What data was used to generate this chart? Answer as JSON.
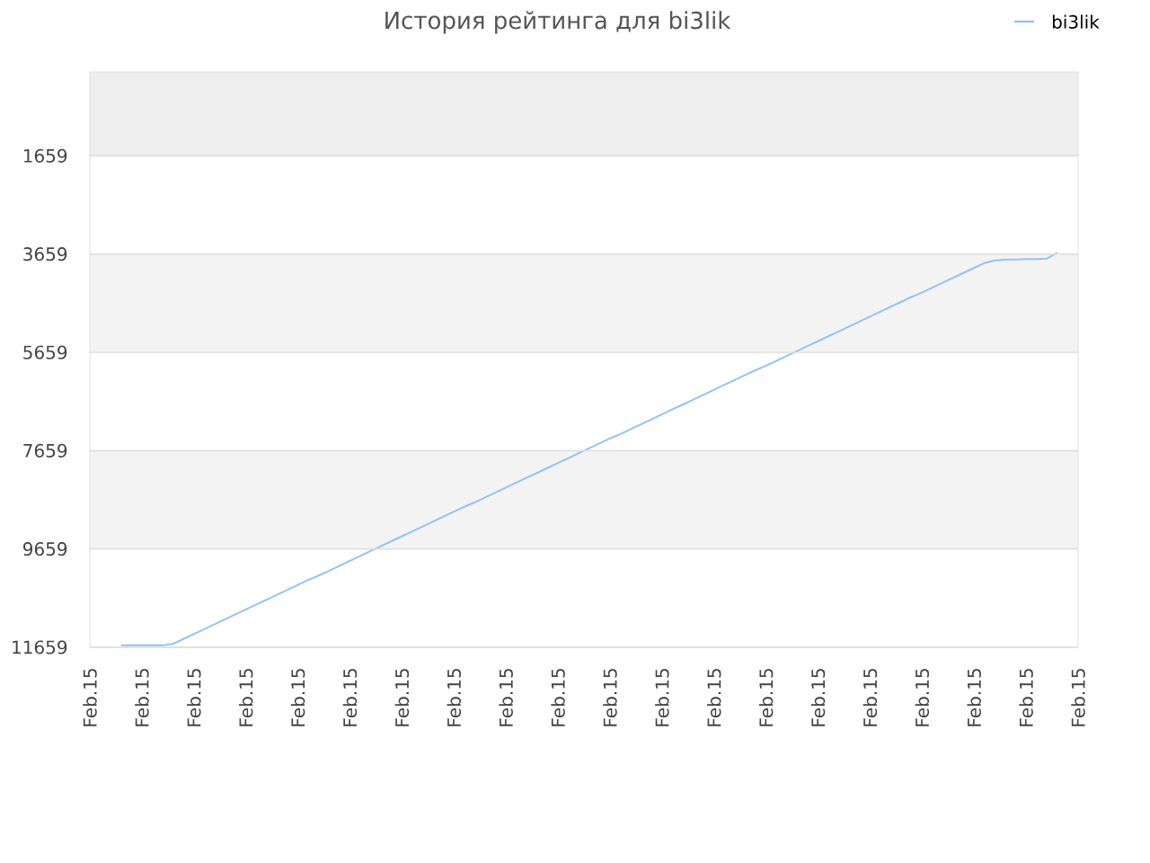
{
  "chart_data": {
    "type": "line",
    "title": "История рейтинга для bi3lik",
    "categories": [
      "Feb.15",
      null,
      null,
      null,
      null,
      "Feb.15",
      null,
      null,
      null,
      null,
      "Feb.15",
      null,
      null,
      null,
      null,
      "Feb.15",
      null,
      null,
      null,
      null,
      "Feb.15",
      null,
      null,
      null,
      null,
      "Feb.15",
      null,
      null,
      null,
      null,
      "Feb.15",
      null,
      null,
      null,
      null,
      "Feb.15",
      null,
      null,
      null,
      null,
      "Feb.15",
      null,
      null,
      null,
      null,
      "Feb.15",
      null,
      null,
      null,
      null,
      "Feb.15",
      null,
      null,
      null,
      null,
      "Feb.15",
      null,
      null,
      null,
      null,
      "Feb.15",
      null,
      null,
      null,
      null,
      "Feb.15",
      null,
      null,
      null,
      null,
      "Feb.15",
      null,
      null,
      null,
      null,
      "Feb.15",
      null,
      null,
      null,
      null,
      "Feb.15",
      null,
      null,
      null,
      null,
      "Feb.15",
      null,
      null,
      null,
      null,
      "Feb.15",
      null,
      null,
      null,
      null,
      "Feb.15"
    ],
    "series": [
      {
        "name": "bi3lik",
        "color": "#95c2f2",
        "values": [
          null,
          null,
          null,
          11620,
          11620,
          11620,
          11620,
          11620,
          11590,
          11490,
          11390,
          11290,
          11190,
          11090,
          10990,
          10890,
          10790,
          10690,
          10590,
          10490,
          10390,
          10290,
          10200,
          10100,
          10000,
          9900,
          9800,
          9700,
          9600,
          9500,
          9400,
          9300,
          9200,
          9100,
          9000,
          8900,
          8800,
          8710,
          8610,
          8510,
          8410,
          8310,
          8210,
          8110,
          8010,
          7910,
          7810,
          7710,
          7610,
          7510,
          7410,
          7320,
          7220,
          7120,
          7020,
          6920,
          6820,
          6720,
          6620,
          6520,
          6420,
          6320,
          6220,
          6120,
          6020,
          5930,
          5830,
          5730,
          5630,
          5530,
          5430,
          5330,
          5230,
          5130,
          5030,
          4930,
          4830,
          4730,
          4630,
          4530,
          4440,
          4340,
          4240,
          4140,
          4040,
          3940,
          3840,
          3790,
          3770,
          3770,
          3760,
          3760,
          3750,
          3630,
          null,
          null
        ]
      }
    ],
    "ylim": [
      11659,
      -48
    ],
    "yticks": [
      1659,
      3659,
      5659,
      7659,
      9659,
      11659
    ],
    "grid": "y",
    "bands": [
      {
        "axis": "y",
        "from": 1659,
        "to": -48,
        "color": "#eeeeee"
      },
      {
        "axis": "y",
        "from": 3659,
        "to": 5659,
        "color": "#f3f3f3"
      },
      {
        "axis": "y",
        "from": 7659,
        "to": 9659,
        "color": "#f3f3f3"
      }
    ],
    "legend": "top right"
  }
}
